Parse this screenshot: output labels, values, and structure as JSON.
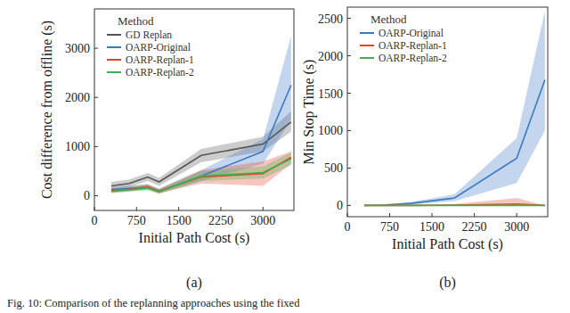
{
  "chart_data": [
    {
      "type": "line",
      "x_label": "Initial Path Cost (s)",
      "y_label": "Cost difference from offline (s)",
      "panel_label": "(a)",
      "legend_title": "Method",
      "legend": "upper left",
      "xlim": [
        0,
        3550
      ],
      "ylim": [
        -300,
        3800
      ],
      "xticks": [
        0,
        750,
        1500,
        2250,
        3000
      ],
      "yticks": [
        0,
        1000,
        2000,
        3000
      ],
      "x": [
        300,
        620,
        950,
        1150,
        1900,
        3000,
        3500
      ],
      "series": [
        {
          "name": "GD Replan",
          "color": "#555555",
          "values": [
            200,
            250,
            380,
            280,
            820,
            1050,
            1500
          ],
          "lower": [
            130,
            180,
            300,
            200,
            680,
            900,
            1300
          ],
          "upper": [
            280,
            330,
            460,
            360,
            950,
            1200,
            1720
          ]
        },
        {
          "name": "OARP-Original",
          "color": "#3b78c4",
          "values": [
            120,
            150,
            170,
            90,
            400,
            900,
            2250
          ],
          "lower": [
            70,
            100,
            120,
            50,
            300,
            650,
            1550
          ],
          "upper": [
            170,
            210,
            230,
            140,
            520,
            1150,
            3250
          ]
        },
        {
          "name": "OARP-Replan-1",
          "color": "#e8412a",
          "values": [
            100,
            130,
            180,
            90,
            380,
            450,
            780
          ],
          "lower": [
            60,
            90,
            130,
            50,
            250,
            200,
            650
          ],
          "upper": [
            150,
            180,
            240,
            140,
            520,
            700,
            900
          ]
        },
        {
          "name": "OARP-Replan-2",
          "color": "#3cb34a",
          "values": [
            90,
            120,
            160,
            80,
            400,
            470,
            750
          ],
          "lower": [
            50,
            80,
            110,
            40,
            300,
            350,
            620
          ],
          "upper": [
            140,
            170,
            220,
            130,
            500,
            600,
            880
          ]
        }
      ]
    },
    {
      "type": "line",
      "x_label": "Initial Path Cost (s)",
      "y_label": "Min Stop Time (s)",
      "panel_label": "(b)",
      "legend_title": "Method",
      "legend": "upper left",
      "xlim": [
        0,
        3550
      ],
      "ylim": [
        -150,
        2650
      ],
      "xticks": [
        0,
        750,
        1500,
        2250,
        3000
      ],
      "yticks": [
        0,
        500,
        1000,
        1500,
        2000,
        2500
      ],
      "x": [
        300,
        620,
        950,
        1150,
        1900,
        3000,
        3500
      ],
      "series": [
        {
          "name": "OARP-Original",
          "color": "#3b78c4",
          "values": [
            0,
            5,
            20,
            30,
            100,
            630,
            1680
          ],
          "lower": [
            0,
            0,
            5,
            10,
            60,
            300,
            1000
          ],
          "upper": [
            0,
            10,
            35,
            50,
            150,
            900,
            2600
          ]
        },
        {
          "name": "OARP-Replan-1",
          "color": "#e8412a",
          "values": [
            0,
            0,
            0,
            0,
            5,
            20,
            0
          ],
          "lower": [
            0,
            0,
            0,
            0,
            0,
            0,
            0
          ],
          "upper": [
            0,
            0,
            0,
            0,
            20,
            100,
            0
          ]
        },
        {
          "name": "OARP-Replan-2",
          "color": "#3cb34a",
          "values": [
            0,
            0,
            0,
            0,
            0,
            0,
            0
          ],
          "lower": [
            0,
            0,
            0,
            0,
            0,
            0,
            0
          ],
          "upper": [
            0,
            0,
            0,
            0,
            0,
            0,
            0
          ]
        }
      ]
    }
  ],
  "caption": "Fig. 10: Comparison of the replanning approaches using the fixed"
}
